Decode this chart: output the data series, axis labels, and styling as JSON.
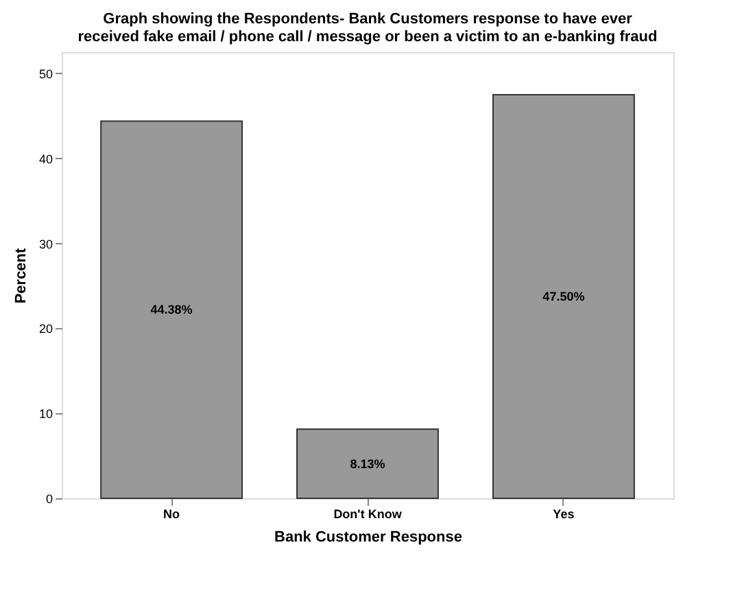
{
  "chart_data": {
    "type": "bar",
    "title": [
      "Graph showing the Respondents- Bank Customers response to have ever",
      "received fake email / phone call / message or been a victim to an e-banking fraud"
    ],
    "xlabel": "Bank Customer Response",
    "ylabel": "Percent",
    "categories": [
      "No",
      "Don't Know",
      "Yes"
    ],
    "values": [
      44.38,
      8.13,
      47.5
    ],
    "value_labels": [
      "44.38%",
      "8.13%",
      "47.50%"
    ],
    "color": "#999999",
    "ylim": [
      0,
      52.5
    ],
    "yticks": [
      0,
      10,
      20,
      30,
      40,
      50
    ],
    "grid": false
  }
}
